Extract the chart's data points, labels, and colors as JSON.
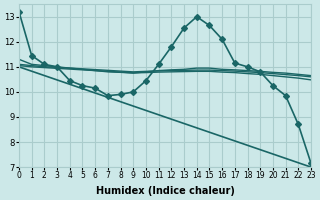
{
  "xlabel": "Humidex (Indice chaleur)",
  "ylabel": "",
  "bg_color": "#cce8e8",
  "grid_color": "#aacccc",
  "line_color": "#1a6666",
  "xlim": [
    0,
    23
  ],
  "ylim": [
    7,
    13.5
  ],
  "yticks": [
    7,
    8,
    9,
    10,
    11,
    12,
    13
  ],
  "xticks": [
    0,
    1,
    2,
    3,
    4,
    5,
    6,
    7,
    8,
    9,
    10,
    11,
    12,
    13,
    14,
    15,
    16,
    17,
    18,
    19,
    20,
    21,
    22,
    23
  ],
  "series": [
    {
      "x": [
        0,
        1,
        2,
        3,
        4,
        5,
        6,
        7,
        8,
        9,
        10,
        11,
        12,
        13,
        14,
        15,
        16,
        17,
        18,
        19,
        20,
        21,
        22,
        23
      ],
      "y": [
        13.2,
        11.45,
        11.1,
        11.0,
        10.45,
        10.25,
        10.15,
        9.85,
        9.9,
        10.0,
        10.45,
        11.1,
        11.8,
        12.55,
        13.0,
        12.65,
        12.1,
        11.15,
        11.0,
        10.8,
        10.25,
        9.85,
        8.7,
        7.15
      ],
      "marker": "D",
      "markersize": 3,
      "linewidth": 1.2
    },
    {
      "x": [
        0,
        1,
        2,
        3,
        4,
        5,
        6,
        7,
        8,
        9,
        10,
        11,
        12,
        13,
        14,
        15,
        16,
        17,
        18,
        19,
        20,
        21,
        22,
        23
      ],
      "y": [
        11.3,
        11.1,
        11.05,
        11.0,
        10.95,
        10.9,
        10.85,
        10.8,
        10.78,
        10.75,
        10.8,
        10.85,
        10.88,
        10.9,
        10.95,
        10.95,
        10.9,
        10.88,
        10.85,
        10.82,
        10.78,
        10.75,
        10.7,
        10.65
      ],
      "marker": null,
      "markersize": 0,
      "linewidth": 1.0
    },
    {
      "x": [
        0,
        1,
        2,
        3,
        4,
        5,
        6,
        7,
        8,
        9,
        10,
        11,
        12,
        13,
        14,
        15,
        16,
        17,
        18,
        19,
        20,
        21,
        22,
        23
      ],
      "y": [
        11.1,
        11.05,
        11.0,
        10.98,
        10.95,
        10.92,
        10.89,
        10.86,
        10.83,
        10.8,
        10.82,
        10.84,
        10.85,
        10.86,
        10.87,
        10.87,
        10.85,
        10.83,
        10.8,
        10.77,
        10.73,
        10.69,
        10.65,
        10.6
      ],
      "marker": null,
      "markersize": 0,
      "linewidth": 1.0
    },
    {
      "x": [
        0,
        1,
        2,
        3,
        4,
        5,
        6,
        7,
        8,
        9,
        10,
        11,
        12,
        13,
        14,
        15,
        16,
        17,
        18,
        19,
        20,
        21,
        22,
        23
      ],
      "y": [
        11.05,
        11.0,
        10.97,
        10.94,
        10.91,
        10.88,
        10.85,
        10.82,
        10.79,
        10.76,
        10.77,
        10.79,
        10.8,
        10.81,
        10.82,
        10.82,
        10.79,
        10.77,
        10.73,
        10.7,
        10.65,
        10.6,
        10.55,
        10.48
      ],
      "marker": null,
      "markersize": 0,
      "linewidth": 1.0
    },
    {
      "x": [
        0,
        23
      ],
      "y": [
        11.0,
        7.0
      ],
      "marker": null,
      "markersize": 0,
      "linewidth": 1.2
    }
  ]
}
